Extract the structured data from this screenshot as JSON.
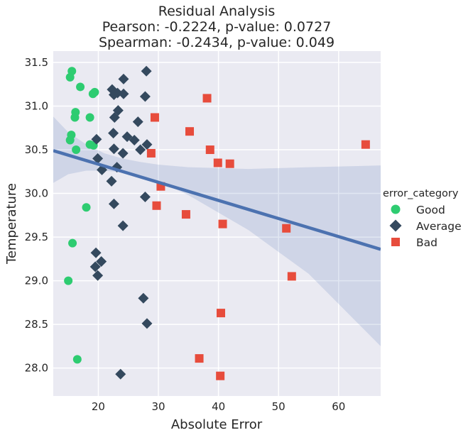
{
  "chart_data": {
    "type": "scatter",
    "title": [
      "Residual Analysis",
      "Pearson: -0.2224, p-value: 0.0727",
      "Spearman: -0.2434, p-value: 0.049"
    ],
    "xlabel": "Absolute Error",
    "ylabel": "Temperature",
    "xlim": [
      12.5,
      67
    ],
    "ylim": [
      27.68,
      31.63
    ],
    "xticks": [
      20,
      30,
      40,
      50,
      60
    ],
    "yticks": [
      28.0,
      28.5,
      29.0,
      29.5,
      30.0,
      30.5,
      31.0,
      31.5
    ],
    "ytick_labels": [
      "28.0",
      "28.5",
      "29.0",
      "29.5",
      "30.0",
      "30.5",
      "31.0",
      "31.5"
    ],
    "grid": true,
    "legend": {
      "title": "error_category",
      "placement": "right",
      "entries": [
        "Good",
        "Average",
        "Bad"
      ]
    },
    "regression": {
      "x": [
        12.5,
        67
      ],
      "y": [
        30.49,
        29.36
      ],
      "ci_upper": [
        [
          12.5,
          30.88
        ],
        [
          15,
          30.7
        ],
        [
          18,
          30.56
        ],
        [
          21,
          30.46
        ],
        [
          24,
          30.4
        ],
        [
          27,
          30.36
        ],
        [
          30,
          30.33
        ],
        [
          35,
          30.3
        ],
        [
          45,
          30.28
        ],
        [
          55,
          30.3
        ],
        [
          67,
          30.32
        ]
      ],
      "ci_lower": [
        [
          12.5,
          30.12
        ],
        [
          15,
          30.22
        ],
        [
          18,
          30.26
        ],
        [
          21,
          30.26
        ],
        [
          24,
          30.24
        ],
        [
          27,
          30.2
        ],
        [
          30,
          30.14
        ],
        [
          35,
          29.98
        ],
        [
          45,
          29.58
        ],
        [
          55,
          29.08
        ],
        [
          67,
          28.25
        ]
      ]
    },
    "series": [
      {
        "name": "Good",
        "marker": "circle",
        "color": "#2ecc71",
        "points": [
          [
            15.6,
            31.4
          ],
          [
            15.3,
            31.33
          ],
          [
            17.0,
            31.22
          ],
          [
            19.4,
            31.16
          ],
          [
            19.1,
            31.14
          ],
          [
            16.2,
            30.93
          ],
          [
            16.1,
            30.87
          ],
          [
            18.6,
            30.87
          ],
          [
            15.5,
            30.67
          ],
          [
            15.3,
            30.61
          ],
          [
            18.6,
            30.56
          ],
          [
            19.2,
            30.55
          ],
          [
            16.3,
            30.5
          ],
          [
            18.0,
            29.84
          ],
          [
            15.7,
            29.43
          ],
          [
            15.0,
            29.0
          ],
          [
            16.5,
            28.1
          ]
        ]
      },
      {
        "name": "Average",
        "marker": "diamond",
        "color": "#34495e",
        "points": [
          [
            28.0,
            31.4
          ],
          [
            24.2,
            31.31
          ],
          [
            22.3,
            31.19
          ],
          [
            23.2,
            31.15
          ],
          [
            24.2,
            31.14
          ],
          [
            22.6,
            31.13
          ],
          [
            27.8,
            31.11
          ],
          [
            23.3,
            30.95
          ],
          [
            22.7,
            30.87
          ],
          [
            26.6,
            30.82
          ],
          [
            22.5,
            30.69
          ],
          [
            24.8,
            30.65
          ],
          [
            26.0,
            30.61
          ],
          [
            19.7,
            30.62
          ],
          [
            28.1,
            30.56
          ],
          [
            22.6,
            30.51
          ],
          [
            27.0,
            30.5
          ],
          [
            24.1,
            30.46
          ],
          [
            19.9,
            30.4
          ],
          [
            23.1,
            30.3
          ],
          [
            20.6,
            30.27
          ],
          [
            22.2,
            30.14
          ],
          [
            27.8,
            29.96
          ],
          [
            22.6,
            29.88
          ],
          [
            24.1,
            29.63
          ],
          [
            19.6,
            29.32
          ],
          [
            20.5,
            29.22
          ],
          [
            19.5,
            29.16
          ],
          [
            19.9,
            29.06
          ],
          [
            27.5,
            28.8
          ],
          [
            28.1,
            28.51
          ],
          [
            23.7,
            27.93
          ]
        ]
      },
      {
        "name": "Bad",
        "marker": "square",
        "color": "#e74c3c",
        "points": [
          [
            38.1,
            31.09
          ],
          [
            29.4,
            30.87
          ],
          [
            35.2,
            30.71
          ],
          [
            64.5,
            30.56
          ],
          [
            38.6,
            30.5
          ],
          [
            28.8,
            30.46
          ],
          [
            39.9,
            30.35
          ],
          [
            41.9,
            30.34
          ],
          [
            30.4,
            30.08
          ],
          [
            29.7,
            29.86
          ],
          [
            34.6,
            29.76
          ],
          [
            40.7,
            29.65
          ],
          [
            51.3,
            29.6
          ],
          [
            52.2,
            29.05
          ],
          [
            40.4,
            28.63
          ],
          [
            36.8,
            28.11
          ],
          [
            40.3,
            27.91
          ]
        ]
      }
    ]
  }
}
